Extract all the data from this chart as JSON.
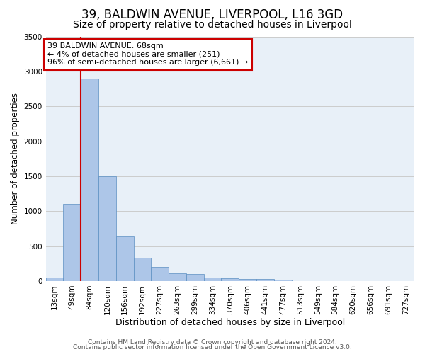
{
  "title": "39, BALDWIN AVENUE, LIVERPOOL, L16 3GD",
  "subtitle": "Size of property relative to detached houses in Liverpool",
  "xlabel": "Distribution of detached houses by size in Liverpool",
  "ylabel": "Number of detached properties",
  "bar_labels": [
    "13sqm",
    "49sqm",
    "84sqm",
    "120sqm",
    "156sqm",
    "192sqm",
    "227sqm",
    "263sqm",
    "299sqm",
    "334sqm",
    "370sqm",
    "406sqm",
    "441sqm",
    "477sqm",
    "513sqm",
    "549sqm",
    "584sqm",
    "620sqm",
    "656sqm",
    "691sqm",
    "727sqm"
  ],
  "bar_heights": [
    50,
    1100,
    2900,
    1500,
    640,
    330,
    200,
    110,
    100,
    55,
    40,
    30,
    25,
    20,
    0,
    0,
    0,
    0,
    0,
    0,
    0
  ],
  "bar_color": "#adc6e8",
  "bar_edge_color": "#5a8fc2",
  "bar_width": 1.0,
  "ylim": [
    0,
    3500
  ],
  "yticks": [
    0,
    500,
    1000,
    1500,
    2000,
    2500,
    3000,
    3500
  ],
  "vline_color": "#cc0000",
  "annotation_title": "39 BALDWIN AVENUE: 68sqm",
  "annotation_line1": "← 4% of detached houses are smaller (251)",
  "annotation_line2": "96% of semi-detached houses are larger (6,661) →",
  "annotation_box_color": "#ffffff",
  "annotation_box_edge": "#cc0000",
  "footer1": "Contains HM Land Registry data © Crown copyright and database right 2024.",
  "footer2": "Contains public sector information licensed under the Open Government Licence v3.0.",
  "grid_color": "#cccccc",
  "bg_color": "#e8f0f8",
  "fig_bg_color": "#ffffff",
  "title_fontsize": 12,
  "subtitle_fontsize": 10,
  "xlabel_fontsize": 9,
  "ylabel_fontsize": 8.5,
  "tick_fontsize": 7.5,
  "footer_fontsize": 6.5
}
